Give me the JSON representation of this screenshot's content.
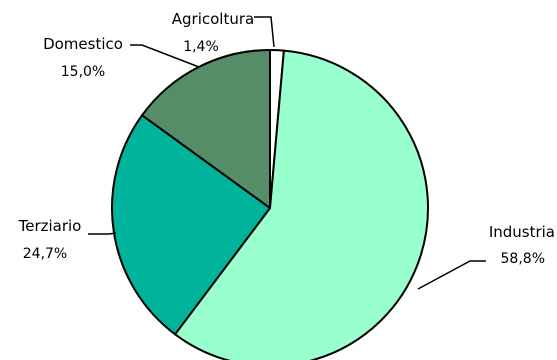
{
  "chart_data": {
    "type": "pie",
    "title": "",
    "start_angle_deg": 0,
    "direction": "clockwise",
    "slices": [
      {
        "label": "Agricoltura",
        "value": 1.4,
        "display_value": "1,4%",
        "color": "#ffffff"
      },
      {
        "label": "Industria",
        "value": 58.8,
        "display_value": "58,8%",
        "color": "#99ffcc"
      },
      {
        "label": "Terziario",
        "value": 24.7,
        "display_value": "24,7%",
        "color": "#00b39b"
      },
      {
        "label": "Domestico",
        "value": 15.0,
        "display_value": "15,0%",
        "color": "#558d69"
      }
    ],
    "stroke_color": "#000000"
  }
}
